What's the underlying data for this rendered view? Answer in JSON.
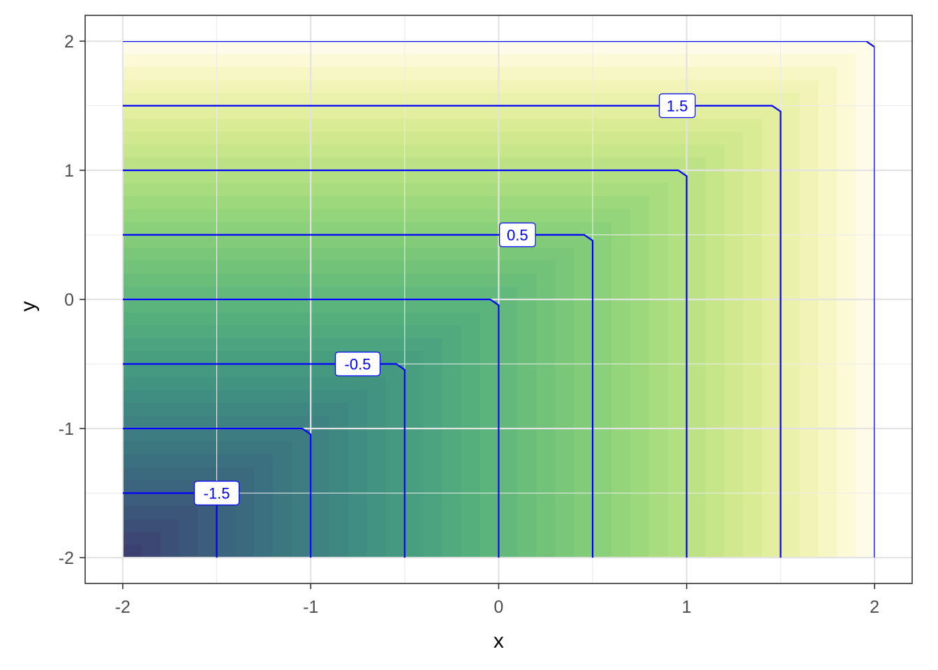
{
  "chart_data": {
    "type": "contour",
    "title": "",
    "xlabel": "x",
    "ylabel": "y",
    "xlim": [
      -2.2,
      2.2
    ],
    "ylim": [
      -2.2,
      2.2
    ],
    "x_ticks": [
      -2,
      -1,
      0,
      1,
      2
    ],
    "y_ticks": [
      -2,
      -1,
      0,
      1,
      2
    ],
    "x_tick_labels": [
      "-2",
      "-1",
      "0",
      "1",
      "2"
    ],
    "y_tick_labels": [
      "-2",
      "-1",
      "0",
      "1",
      "2"
    ],
    "grid": true,
    "domain": {
      "x": [
        -2,
        2
      ],
      "y": [
        -2,
        2
      ]
    },
    "function": "max(x, y)",
    "contour_levels": [
      -1.5,
      -1,
      -0.5,
      0,
      0.5,
      1,
      1.5,
      2
    ],
    "contour_color": "#0000ff",
    "labeled_levels": [
      {
        "level": -1.5,
        "text": "-1.5",
        "x": -1.5,
        "y": -1.5
      },
      {
        "level": -0.5,
        "text": "-0.5",
        "x": -0.75,
        "y": -0.5
      },
      {
        "level": 0.5,
        "text": "0.5",
        "x": 0.1,
        "y": 0.5
      },
      {
        "level": 1.5,
        "text": "1.5",
        "x": 0.95,
        "y": 1.5
      }
    ],
    "fill_gradient": [
      "#440154",
      "#3b528b",
      "#21908c",
      "#5dc963",
      "#fde725"
    ],
    "fill_opacity": 0.1
  }
}
